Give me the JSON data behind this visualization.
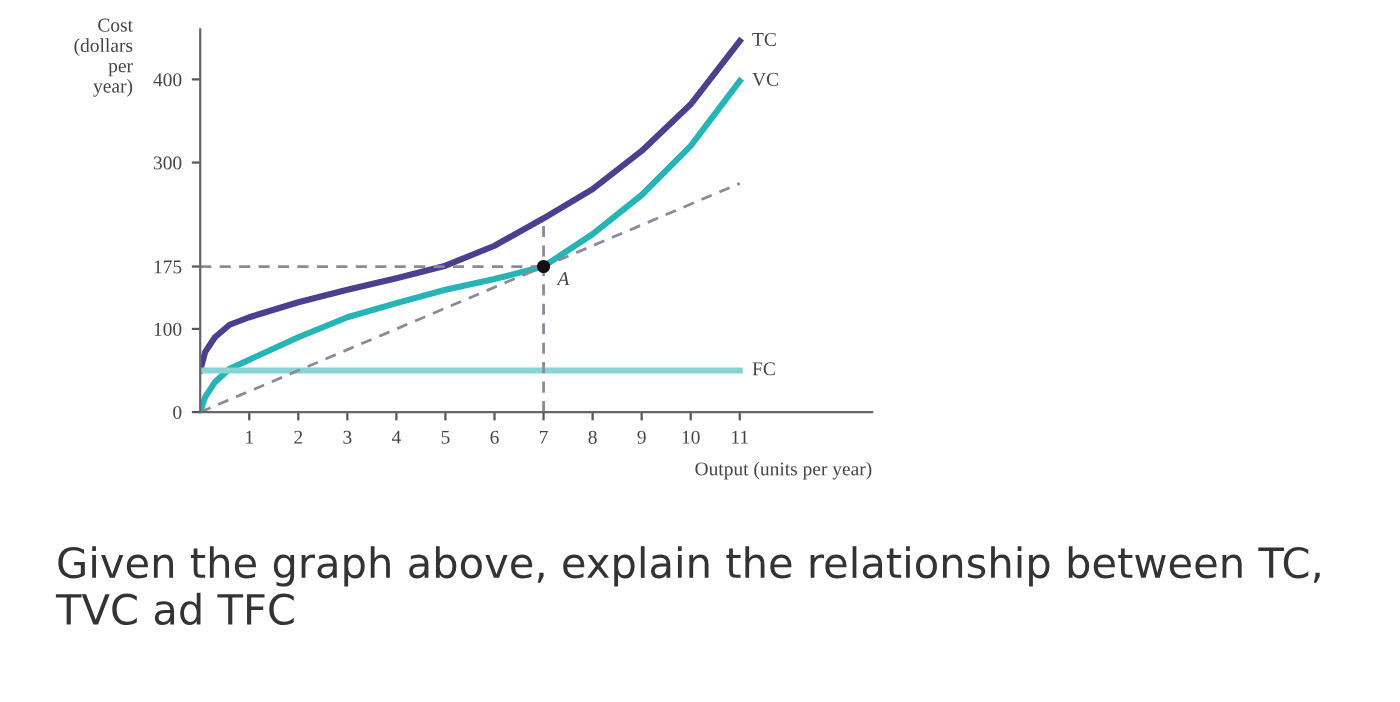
{
  "chart_data": {
    "type": "line",
    "ylabel": "Cost\n(dollars\nper\nyear)",
    "xlabel": "Output (units per year)",
    "xlim": [
      0,
      13.7
    ],
    "ylim": [
      0,
      460
    ],
    "xticks": [
      1,
      2,
      3,
      4,
      5,
      6,
      7,
      8,
      9,
      10,
      11
    ],
    "yticks": [
      0,
      100,
      175,
      300,
      400
    ],
    "series": [
      {
        "name": "TC",
        "color": "#4b3f8e",
        "x": [
          0,
          0.1,
          0.3,
          0.6,
          1,
          2,
          3,
          4,
          5,
          6,
          7,
          8,
          9,
          10,
          11
        ],
        "values": [
          50,
          72,
          90,
          105,
          114,
          132,
          147,
          161,
          176,
          200,
          233,
          268,
          314,
          370,
          446
        ]
      },
      {
        "name": "VC",
        "color": "#27b4b6",
        "x": [
          0,
          0.1,
          0.3,
          0.6,
          1,
          2,
          3,
          4,
          5,
          6,
          7,
          8,
          9,
          10,
          11
        ],
        "values": [
          0,
          18,
          36,
          52,
          63,
          90,
          114,
          131,
          147,
          160,
          175,
          214,
          261,
          320,
          398
        ]
      },
      {
        "name": "FC",
        "color": "#86d4d6",
        "x": [
          0,
          11
        ],
        "values": [
          50,
          50
        ]
      },
      {
        "color": "#8a8a9a",
        "line_style": "dashed",
        "x": [
          0,
          7,
          11
        ],
        "values": [
          0,
          175,
          275
        ]
      },
      {
        "color": "#8a8a9a",
        "line_style": "dashed",
        "x": [
          0,
          7
        ],
        "values": [
          175,
          175
        ]
      },
      {
        "color": "#8a8a9a",
        "line_style": "dashed",
        "x": [
          7,
          7
        ],
        "values": [
          0,
          233
        ]
      },
      {
        "type": "scatter",
        "color": "#111111",
        "marker": "circle",
        "x": [
          7
        ],
        "values": [
          175
        ]
      }
    ],
    "annotations": [
      {
        "text": "A",
        "x": 7,
        "y": 175
      },
      "Given the graph above, explain the relationship between TC, TVC ad TFC"
    ]
  }
}
